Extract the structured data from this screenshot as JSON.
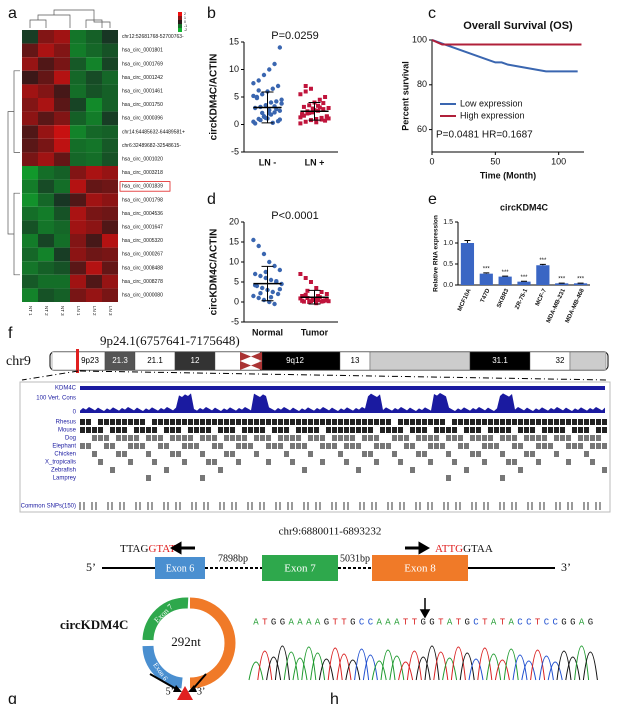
{
  "panel_labels": [
    "a",
    "b",
    "c",
    "d",
    "e",
    "f",
    "g",
    "h"
  ],
  "heatmap": {
    "rows": [
      "chr12:52681768-52700763-",
      "hsa_circ_0001801",
      "hsa_circ_0001769",
      "hsa_circ_0001242",
      "hsa_circ_0001461",
      "hsa_circ_0001750",
      "hsa_circ_0000396",
      "chr14:64485632-64489581+",
      "chr6:32489682-32548615-",
      "hsa_circ_0001020",
      "hsa_circ_0003218",
      "hsa_circ_0001839",
      "hsa_circ_0001798",
      "hsa_circ_0004536",
      "hsa_circ_0001647",
      "hsa_circ_0005320",
      "hsa_circ_0000267",
      "hsa_circ_0008488",
      "hsa_circ_0008278",
      "hsa_circ_0000080"
    ],
    "columns": [
      "NT 1",
      "NT 2",
      "NT 3",
      "LN 1",
      "LN 2",
      "LN 3"
    ],
    "highlighted_row": "hsa_circ_0001839",
    "colorbar_ticks": [
      2,
      1,
      0,
      -1,
      -2
    ],
    "values": [
      [
        -0.3,
        0.9,
        1.2,
        -1.1,
        -0.8,
        -0.2
      ],
      [
        0.6,
        1.3,
        0.9,
        -1.2,
        -0.9,
        -0.6
      ],
      [
        1.1,
        0.4,
        0.8,
        -0.7,
        -1.3,
        -0.4
      ],
      [
        0.2,
        0.6,
        1.4,
        -0.9,
        -0.5,
        -0.9
      ],
      [
        1.2,
        0.9,
        0.3,
        -1.0,
        -0.6,
        -0.8
      ],
      [
        0.9,
        1.3,
        0.5,
        -0.4,
        -1.4,
        -0.8
      ],
      [
        1.0,
        0.5,
        0.9,
        -0.8,
        -1.2,
        -0.3
      ],
      [
        0.4,
        1.1,
        1.6,
        -1.3,
        -0.9,
        -0.8
      ],
      [
        0.5,
        0.8,
        1.5,
        -1.0,
        -1.1,
        -0.7
      ],
      [
        0.8,
        1.2,
        0.6,
        -0.9,
        -1.0,
        -0.6
      ],
      [
        -1.6,
        -1.0,
        -0.8,
        0.9,
        1.3,
        1.1
      ],
      [
        -1.2,
        -0.5,
        -1.0,
        1.4,
        0.6,
        0.7
      ],
      [
        -1.5,
        -0.9,
        -0.2,
        0.4,
        1.2,
        1.0
      ],
      [
        -1.0,
        -1.2,
        -0.6,
        1.3,
        0.8,
        0.7
      ],
      [
        -0.6,
        -1.1,
        -0.9,
        1.2,
        1.0,
        0.4
      ],
      [
        -1.2,
        -0.4,
        -1.0,
        0.9,
        0.3,
        1.4
      ],
      [
        -0.9,
        -1.3,
        -0.3,
        1.0,
        0.7,
        0.8
      ],
      [
        -1.1,
        -0.8,
        -0.6,
        0.5,
        1.4,
        0.6
      ],
      [
        -0.7,
        -1.0,
        -1.0,
        1.2,
        0.4,
        1.1
      ],
      [
        -1.3,
        -0.6,
        -0.8,
        0.8,
        1.1,
        0.8
      ]
    ]
  },
  "chart_data": [
    {
      "type": "strip",
      "ylabel": "circKDM4C/ACTIN",
      "annotation": "P=0.0259",
      "categories": [
        "LN -",
        "LN +"
      ],
      "series": [
        {
          "color": "#3a66b0",
          "marker": "circle",
          "mean": 3.1,
          "sd": 2.8,
          "values": [
            0.5,
            1,
            1.5,
            2,
            2.2,
            2.5,
            3,
            3.2,
            3.5,
            4,
            4.2,
            4.5,
            5,
            5.5,
            6,
            6.5,
            7,
            7.5,
            8,
            9,
            10,
            11,
            14,
            0.2,
            0.8,
            1.2,
            1.8,
            2.8,
            3.8,
            4.8,
            2.1,
            1.1,
            0.3,
            0.6,
            5.2,
            6.2,
            1.4,
            2.6,
            3.3,
            0.9
          ]
        },
        {
          "color": "#c0143c",
          "marker": "square",
          "mean": 2.4,
          "sd": 1.6,
          "values": [
            0.2,
            0.5,
            0.8,
            1,
            1.2,
            1.5,
            1.8,
            2,
            2.2,
            2.5,
            2.8,
            3,
            3.2,
            3.5,
            4,
            4.5,
            5,
            5.5,
            6,
            6.5,
            0.4,
            0.9,
            1.4,
            1.9,
            2.4,
            2.9,
            3.4,
            3.9,
            1.1,
            1.6,
            2.1,
            2.6,
            3.1,
            0.7,
            1.3,
            7
          ]
        }
      ],
      "ylim": [
        -5,
        15
      ],
      "yticks": [
        -5,
        0,
        5,
        10,
        15
      ]
    },
    {
      "type": "line",
      "title": "Overall Survival (OS)",
      "xlabel": "Time (Month)",
      "ylabel": "Percent survival",
      "annotation": "P=0.0481 HR=0.1687",
      "legend": "bottom-left",
      "series": [
        {
          "name": "Low expression",
          "color": "#3a66b0",
          "x": [
            0,
            5,
            10,
            15,
            20,
            25,
            30,
            35,
            40,
            45,
            50,
            55,
            60,
            70,
            80,
            90,
            100,
            115
          ],
          "y": [
            100,
            99,
            98,
            97,
            96,
            95,
            94,
            93,
            92,
            91,
            90,
            90,
            89,
            88,
            87,
            86,
            86,
            86
          ]
        },
        {
          "name": "High expression",
          "color": "#b0203a",
          "x": [
            0,
            8,
            118
          ],
          "y": [
            100,
            98,
            98
          ]
        }
      ],
      "xlim": [
        0,
        120
      ],
      "xticks": [
        0,
        50,
        100
      ],
      "ylim": [
        50,
        100
      ],
      "yticks": [
        60,
        80,
        100
      ]
    },
    {
      "type": "strip",
      "ylabel": "circKDM4C/ACTIN",
      "annotation": "P<0.0001",
      "categories": [
        "Normal",
        "Tumor"
      ],
      "series": [
        {
          "color": "#3a66b0",
          "marker": "circle",
          "mean": 4.6,
          "sd": 4.3,
          "values": [
            15.5,
            14,
            12,
            10,
            9,
            8,
            7,
            6.5,
            6,
            5.5,
            5,
            4.5,
            4,
            3.5,
            3,
            2.5,
            2,
            1.5,
            1,
            0.5,
            0,
            -0.5,
            3.2,
            4.2,
            2.2,
            7.5,
            1.2,
            5.2
          ]
        },
        {
          "color": "#c0143c",
          "marker": "square",
          "mean": 1.2,
          "sd": 1.7,
          "values": [
            7,
            6,
            5,
            3.5,
            2.5,
            2,
            1.5,
            1,
            0.8,
            0.5,
            0.3,
            0.2,
            0.1,
            0,
            0.6,
            1.2,
            0.4,
            0.9,
            1.8,
            0.2,
            -0.3,
            0.1,
            0.7,
            0.3,
            2.8,
            0.5,
            1.5,
            0.2
          ]
        }
      ],
      "ylim": [
        -5,
        20
      ],
      "yticks": [
        -5,
        0,
        5,
        10,
        15,
        20
      ]
    },
    {
      "type": "bar",
      "title": "circKDM4C",
      "ylabel": "Relative RNA expression",
      "color": "#3a66c4",
      "categories": [
        "MCF10A",
        "T47D",
        "SKBR3",
        "ZR-75-1",
        "MCF-7",
        "MDA-MB-231",
        "MDA-MB-468"
      ],
      "values": [
        1.0,
        0.27,
        0.2,
        0.08,
        0.47,
        0.04,
        0.04
      ],
      "errors": [
        0.06,
        0.02,
        0.01,
        0.01,
        0.02,
        0.005,
        0.005
      ],
      "significance": [
        null,
        "***",
        "***",
        "***",
        "***",
        "***",
        "***"
      ],
      "ylim": [
        0,
        1.5
      ],
      "yticks": [
        {
          "value": 0,
          "label": "0.0"
        },
        {
          "value": 0.5,
          "label": "0.5"
        },
        {
          "value": 1,
          "label": "1.0"
        },
        {
          "value": 1.5,
          "label": "1.5"
        }
      ]
    }
  ],
  "genome": {
    "region": "9p24.1(6757641-7175648)",
    "chromosome": "chr9",
    "bands": [
      "9p23",
      "21.3",
      "21.1",
      "12",
      "9q12",
      "13",
      "31.1",
      "32"
    ],
    "tracks": {
      "gene": "KDM4C",
      "conservation": "100 Vert. Cons",
      "conservation_min": "0",
      "species": [
        "Rhesus",
        "Mouse",
        "Dog",
        "Elephant",
        "Chicken",
        "X_tropicalis",
        "Zebrafish",
        "Lamprey"
      ],
      "snps": "Common SNPs(150)"
    }
  },
  "gene_structure": {
    "locus": "chr9:6880011-6893232",
    "left_seq": {
      "plain": "TTAG",
      "red": "GTAT"
    },
    "right_seq": {
      "red": "ATTG",
      "plain": "GTAA"
    },
    "five_prime": "5’",
    "three_prime": "3’",
    "exons": [
      "Exon 6",
      "Exon 7",
      "Exon 8"
    ],
    "intron_lengths": [
      "7898bp",
      "5031bp"
    ]
  },
  "circrna": {
    "name": "circKDM4C",
    "length": "292nt",
    "exons": [
      "Exon 7",
      "Exon 8",
      "Exon 6"
    ],
    "five_prime": "5’",
    "three_prime": "3’",
    "sequence": [
      "A",
      "T",
      "G",
      "G",
      "A",
      "A",
      "A",
      "A",
      "G",
      "T",
      "T",
      "G",
      "C",
      "C",
      "A",
      "A",
      "A",
      "T",
      "T",
      "G",
      "G",
      "T",
      "A",
      "T",
      "G",
      "C",
      "T",
      "A",
      "T",
      "A",
      "C",
      "C",
      "T",
      "C",
      "C",
      "G",
      "G",
      "A",
      "G"
    ]
  }
}
